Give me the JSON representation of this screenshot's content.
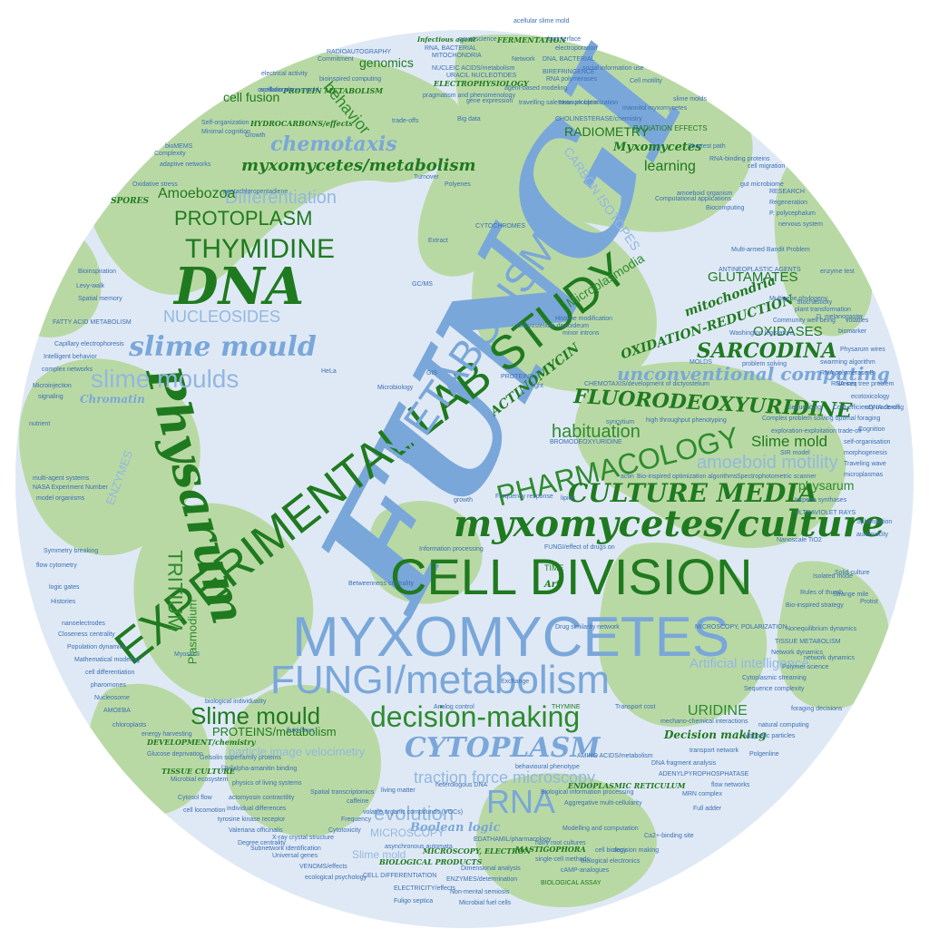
{
  "colors": {
    "disc_fill": "#dfe9f5",
    "blob_fill": "#b9d9a4",
    "dark_green": "#1f7a1f",
    "green": "#2e8b2e",
    "blue": "#7aa7d9",
    "light_blue": "#93b7e0",
    "small_blue": "#3b6fb3"
  },
  "words": {
    "fungi": "FUNGI",
    "experimental_lab_study": "EXPERIMENTAL LAB STUDY",
    "cell_division": "CELL DIVISION",
    "myxomycetes": "MYXOMYCETES",
    "fungi_metabolism": "FUNGI/metabolism",
    "metabolism": "METABOLISM",
    "myxomycetes_culture": "myxomycetes/culture",
    "pharmacology": "PHARMACOLOGY",
    "culture_media": "CULTURE MEDIA",
    "dna": "DNA",
    "physarum": "Physarum",
    "thymidine": "THYMIDINE",
    "protoplasm": "PROTOPLASM",
    "slime_mould": "slime mould",
    "slime_moulds": "slime moulds",
    "decision_making": "decision-making",
    "cytoplasm": "CYTOPLASM",
    "rna": "RNA",
    "slime_mould_2": "Slime mould",
    "traction_force": "traction force microscopy",
    "evolution": "evolution",
    "fluorodeoxyuridine": "FLUORODEOXYURIDINE",
    "sarcodina": "SARCODINA",
    "unconventional_computing": "unconventional computing",
    "amoeboid_motility": "amoeboid motility",
    "slime_mold": "Slime mold",
    "habituation": "habituation",
    "tritium": "TRITIUM",
    "nucleosides": "NUCLEOSIDES",
    "differentiation": "Differentiation",
    "chemotaxis": "chemotaxis",
    "myxomycetes_metabolism": "myxomycetes/metabolism",
    "amoebozoa": "Amoebozoa",
    "behavior": "behavior",
    "genomics": "genomics",
    "cell_fusion": "cell fusion",
    "radiometry": "RADIOMETRY",
    "myxomycetes_sc": "Myxomycetes",
    "learning": "learning",
    "carbon_isotopes": "CARBON ISOTOPES",
    "microplasmodia": "Microplasmodia",
    "glutamates": "GLUTAMATES",
    "oxidases": "OXIDASES",
    "mitochondria": "mitochondria",
    "oxidation_reduction": "OXIDATION-REDUCTION",
    "actinomycin": "ACTINOMYCIN",
    "uridine": "URIDINE",
    "artificial_intelligence": "Artificial intelligence",
    "proteins_metabolism": "PROTEINS/metabolism",
    "particle_image": "particle image velocimetry",
    "plasmodium": "Plasmodium",
    "enzymes": "ENZYMES",
    "physarum_sm": "physarum",
    "boolean_logic": "Boolean logic",
    "microscopy": "MICROSCOPY",
    "slime_mold_sm": "Slime mold",
    "decision_making_sc": "Decision making",
    "chromatin": "Chromatin",
    "spores": "SPORES",
    "radiation_effects": "RADIATION EFFECTS",
    "cell_division_sm": "CELL DIFFERENTIATION",
    "fungi_drugs": "FUNGI/effect of drugs on",
    "hydrocarbons": "HYDROCARBONS/effects",
    "electrophysiology": "ELECTROPHYSIOLOGY",
    "protein_metabolism": "PROTEIN METABOLISM",
    "cholinesterase": "CHOLINESTERASE/chemistry",
    "time": "TIME",
    "art": "Art",
    "thymine": "THYMINE",
    "biological_assay": "BIOLOGICAL ASSAY",
    "mastigophora": "MASTIGOPHORA",
    "microscopy_electron": "MICROSCOPY, ELECTRON",
    "biological_products": "BIOLOGICAL PRODUCTS",
    "endoplasmic_reticulum": "ENDOPLASMIC RETICULUM",
    "tissue_culture": "TISSUE CULTURE",
    "development": "DEVELOPMENT/chemistry",
    "nucleic_acids": "NUCLEIC ACIDS/metabolism",
    "fermentation": "FERMENTATION",
    "infectious_agent": "Infectious agent",
    "social_insects": "social insects",
    "neuroscience": "neuroscience",
    "acellular_slime_mold": "acellular slime mold",
    "rna_bacterial": "RNA, BACTERIAL",
    "mitochondria_up": "MITOCHONDRIA",
    "biointerface": "biointerface",
    "electroporation": "electroporation",
    "radioautography": "RADIOAUTOGRAPHY",
    "commitment": "Commitment",
    "network": "Network",
    "dna_bacterial": "DNA, BACTERIAL",
    "electrical_activity": "electrical activity",
    "bioinspired_computing": "bioinspired computing",
    "acellular_slime_mould": "acellular slime mould",
    "rna_polymerases": "RNA polymerases",
    "oscillations": "oscillations",
    "social_information_use": "social information use",
    "cell_motility": "Cell motility",
    "big_data": "Big data",
    "trade_offs": "trade-offs",
    "minimal_cognition": "Minimal cognition",
    "self_organization": "Self-organization",
    "growth": "Growth",
    "complexity": "Complexity",
    "adaptive_networks": "adaptive networks",
    "oxidative_stress": "Oxidative stress",
    "biomems": "bioMEMS",
    "bioinspiration": "Bioinspiration",
    "spatial_memory": "Spatial memory",
    "levy_walk": "Levy-walk",
    "fatty_acid": "FATTY ACID METABOLISM",
    "capillary": "Capillary electrophoresis",
    "intelligent_behavior": "Intelligent behavior",
    "complex_networks": "complex networks",
    "microinjection": "Microinjection",
    "signaling": "signaling",
    "nutrient": "nutrient",
    "multi_agent": "multi-agent systems",
    "nasa_exp": "NASA Experiment Number",
    "model_organisms": "model organisms",
    "symmetry_breaking": "Symmetry breaking",
    "flow_cytometry": "flow cytometry",
    "logic_gates": "logic gates",
    "histories": "Histories",
    "nanoelectrodes": "nanoelectrodes",
    "closeness_centrality": "Closeness centrality",
    "population_dynamics": "Population dynamics",
    "mathematical_modeling": "Mathematical modeling",
    "cell_differentiation": "cell differentiation",
    "pharomones": "pharomones",
    "nucleosome": "Nucleosome",
    "amoeba": "AMOEBA",
    "chloroplasts": "chloroplasts",
    "energy_harvesting": "energy harvesting",
    "glucose_deprivation": "Glucose deprivation",
    "microbial_ecosystem": "Microbial ecosystem",
    "cytosol_flow": "Cytosol flow",
    "cell_locomotion": "cell locomotion",
    "degree_centrality": "Degree centrality",
    "universal_genes": "Universal genes",
    "subnetwork": "Subnetwork identification",
    "venoms": "VENOMS/effects",
    "fuligo": "Fuligo septica",
    "electricity": "ELECTRICITY/effects",
    "nonmental": "Non-mental semiosis",
    "microbial_fuel": "Microbial fuel cells",
    "enzymes_det": "ENZYMES/determination",
    "dimensional": "Dimensional analysis",
    "single_cell": "single-cell methods",
    "camp": "cAMP-analogues",
    "ca2": "Ca2+-binding site",
    "cell_biology": "cell biology",
    "full_adder": "Full adder",
    "mrn_complex": "MRN complex",
    "decision_rules": "decision making",
    "biological_electronics": "Biological electronics",
    "rna_seq": "RNA-seq",
    "research": "RESEARCH",
    "regeneration": "Regeneration",
    "p_polycephalum": "P. polycephalum",
    "nervous_system": "nervous system",
    "gut_microbiome": "gut microbiome",
    "biocomputing": "Biocomputing",
    "antineoplastic": "ANTINEOPLASTIC AGENTS",
    "multigene": "Multigene phylogeny",
    "community": "Community well-being",
    "volatiles": "volatiles",
    "biomarker": "biomarker",
    "physarum_wires": "Physarum wires",
    "problem_solving": "problem solving",
    "swarming": "swarming algorithm",
    "steiner": "Steiner tree problem",
    "ecotoxicology": "ecotoxicology",
    "cdna_cloning": "cDNA cloning",
    "self_organisation": "self-organisation",
    "morphogenesis": "morphogenesis",
    "sir_model": "SIR model",
    "microplasmas": "microplasmas",
    "terpene": "terpene synthases",
    "ultraviolet": "ULTRAVIOLET RAYS",
    "spherulation": "Spherulation",
    "autotoxicity": "autotoxicity",
    "nanoscale": "Nanoscale TiO2",
    "protist": "Protist",
    "bioinspired_opt": "Bio-inspired optimization algorithms",
    "spectrophotometric": "Spectrophotometric scanner",
    "actin": "actin",
    "high_throughput": "high throughput phenotyping",
    "syncytium": "syncytium",
    "bromodeoxyuridine": "BROMODEOXYURIDINE",
    "chemotaxis_dev": "CHEMOTAXIS/development of dictyostelium",
    "molds": "MOLDS",
    "light": "light",
    "microbiology": "Microbiology",
    "hela": "HeLa",
    "gis": "GIS",
    "gcms": "GC/MS",
    "extract": "Extract",
    "polyenes": "Polyenes",
    "turnover": "Turnover",
    "cytochromes": "CYTOCHROMES",
    "network_optimization": "Network optimization",
    "mannitol": "mannitol myxomycetes",
    "travelling_salesman": "travelling salesman problem",
    "pragmatism": "pragmatism and phenomenology",
    "agent_based": "agent-based modeling",
    "gene_expression": "gene expression",
    "nucleic_acid_met": "NUCLEIC ACIDS/metabolism",
    "uracil": "URACIL NUCLEOTIDES",
    "birefringence": "BIREFRINGENCE",
    "computational_applications": "Computational applications",
    "amoeboid_organism": "amoeboid organism",
    "shortest_path": "Shortest path",
    "cell_migration": "cell migration",
    "rna_binding": "RNA-binding proteins",
    "slime_molds": "slime molds",
    "sir_network": "Network dynamics",
    "tissue_metabolism": "TISSUE METABOLISM",
    "natural_computing": "natural computing",
    "sequence_complexity": "Sequence complexity",
    "cytoplasmic_streaming": "Cytoplasmic streaming",
    "transport_network": "transport network",
    "adenylpyrophosphatase": "ADENYLPYROPHOSPHATASE",
    "aggregative": "Aggregative multi-cellularity",
    "modelling": "Modelling and computation",
    "biological_information": "Biological information processing",
    "behavioural_phenotype": "behavioural phenotype",
    "amino_acids": "AMINO ACIDS/metabolism",
    "dna_fragment": "DNA fragment analysis",
    "hairy_root": "hairy root cultures",
    "edathamil": "EDATHAMIL/pharmacology",
    "transport_cost": "Transport cost",
    "mechano": "mechano-chemical interactions",
    "microscopy_polarization": "MICROSCOPY, POLARIZATION",
    "drug_similarity": "Drug similarity network",
    "frequency_response": "Frequency response",
    "growth_sm": "growth",
    "lipids": "lipids",
    "exchange": "Exchange",
    "analog_control": "Analog control",
    "fluid_flows": "fluid flows",
    "biological_individuality": "biological individuality",
    "myosin": "Myosin II",
    "betweenness": "Betweenness centrality",
    "information_processing": "Information processing",
    "volatile_organic": "volatile organic compounds (VOCs)",
    "heterologous_dna": "heterologous DNA",
    "spatial_transcriptomics": "Spatial transcriptomics",
    "cytotoxicity": "Cytotoxicity",
    "physics_living": "physics of living systems",
    "actomyosin": "actomyosin contractility",
    "individual_differences": "individual differences",
    "valeriana": "Valeriana officinalis",
    "asynchronous": "asynchronous automata",
    "frequency": "Frequency",
    "xray": "X-ray crystal structure",
    "ecological_psychology": "ecological psychology",
    "gelsolin": "Gelsolin superfamily proteins",
    "amanitin": "[3H]alpha-amanitin binding",
    "tyrosine": "tyrosine kinase receptor",
    "caffeine": "caffeine",
    "living_matter": "living matter",
    "proteins": "PROTEINS",
    "dictyostelium": "Dictyostelium discoideum",
    "histone": "Histone modification",
    "minor_introns": "minor introns",
    "pentachloro": "pentachloropentadiene",
    "fluorescence": "Polymer science",
    "magnetic": "Magnetic particles",
    "polygenic": "Polgenline",
    "foraging": "foraging decisions",
    "flow_networks": "flow networks",
    "cost_efficiency": "Cost-efficiency trade-off",
    "stentor": "Sequencing",
    "cognition": "Cognition",
    "complex_problem": "Complex problem solving optimal foraging",
    "exploration": "exploration-exploitation trade-off",
    "traveling_wave": "Traveling wave",
    "rna_polymerase_b": "RNA polymerase B",
    "rules_thumb": "Rules of thumb",
    "nonequilibrium": "Nonequilibrium dynamics",
    "bioinspired_strategy": "Bio-inspired strategy",
    "network_dynamics": "network dynamics",
    "solid_culture": "Solid culture",
    "strange_mile": "Strange mile",
    "isolated_mode": "Isolated mode",
    "d_melanogaster": "D. melanogaster",
    "stochastic": "Stochasticity",
    "washington": "Washington legislature",
    "multi_armed": "Multi-armed Bandit Problem",
    "plant_transformation": "plant transformation",
    "enzyme": "enzyme test"
  }
}
